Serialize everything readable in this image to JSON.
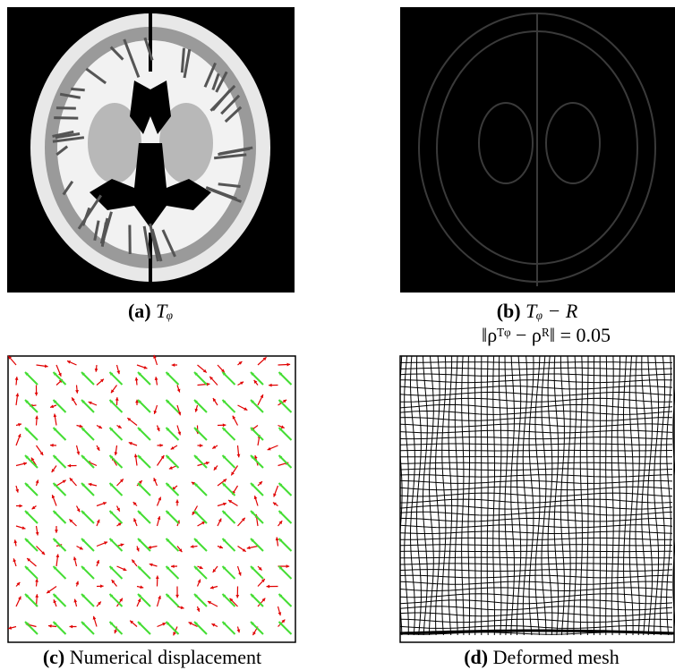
{
  "panels": [
    {
      "label": "(a)",
      "caption": "Tᵩ"
    },
    {
      "label": "(b)",
      "caption": "Tᵩ − R",
      "note": "‖ρᵀᵠ − ρᴿ‖ = 0.05"
    },
    {
      "label": "(c)",
      "caption": "Numerical displacement"
    },
    {
      "label": "(d)",
      "caption": "Deformed mesh"
    }
  ]
}
